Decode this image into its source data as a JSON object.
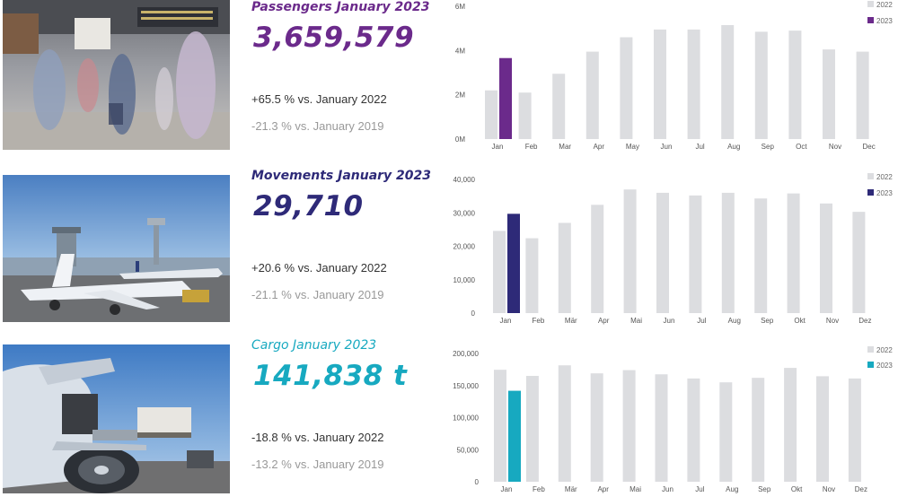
{
  "colors": {
    "bar_2022": "#dcdde0",
    "axis_text": "#555555"
  },
  "sections": [
    {
      "id": "passengers",
      "photo": "airport-terminal-passengers-photo",
      "title": "Passengers January 2023",
      "value": "3,659,579",
      "yoy": "+65.5 % vs. January 2022",
      "vs2019": "-21.3 % vs. January 2019",
      "accent": "#6b2a8b",
      "title_color": "#6b2a8b",
      "chart_data": {
        "type": "bar",
        "categories": [
          "Jan",
          "Feb",
          "Mar",
          "Apr",
          "May",
          "Jun",
          "Jul",
          "Aug",
          "Sep",
          "Oct",
          "Nov",
          "Dec"
        ],
        "series": [
          {
            "name": "2022",
            "values": [
              2.2,
              2.1,
              2.95,
              3.95,
              4.6,
              4.95,
              4.95,
              5.15,
              4.85,
              4.9,
              4.05,
              3.95
            ]
          },
          {
            "name": "2023",
            "values": [
              3.66,
              null,
              null,
              null,
              null,
              null,
              null,
              null,
              null,
              null,
              null,
              null
            ]
          }
        ],
        "ylim": [
          0,
          6
        ],
        "yticks": [
          0,
          2,
          4,
          6
        ],
        "ytick_labels": [
          "0M",
          "2M",
          "4M",
          "6M"
        ],
        "legend": "top-right",
        "grid": false
      }
    },
    {
      "id": "movements",
      "photo": "aircraft-at-gate-photo",
      "title": "Movements January 2023",
      "value": "29,710",
      "yoy": "+20.6 % vs. January 2022",
      "vs2019": "-21.1 % vs. January 2019",
      "accent": "#2e2a78",
      "title_color": "#2e2a78",
      "chart_data": {
        "type": "bar",
        "categories": [
          "Jan",
          "Feb",
          "Mär",
          "Apr",
          "Mai",
          "Jun",
          "Jul",
          "Aug",
          "Sep",
          "Okt",
          "Nov",
          "Dez"
        ],
        "series": [
          {
            "name": "2022",
            "values": [
              24600,
              22400,
              27000,
              32400,
              37000,
              36000,
              35200,
              36000,
              34300,
              35800,
              32800,
              30300
            ]
          },
          {
            "name": "2023",
            "values": [
              29710,
              null,
              null,
              null,
              null,
              null,
              null,
              null,
              null,
              null,
              null,
              null
            ]
          }
        ],
        "ylim": [
          0,
          40000
        ],
        "yticks": [
          0,
          10000,
          20000,
          30000,
          40000
        ],
        "ytick_labels": [
          "0",
          "10,000",
          "20,000",
          "30,000",
          "40,000"
        ],
        "legend": "top-right",
        "grid": false
      }
    },
    {
      "id": "cargo",
      "photo": "cargo-aircraft-loading-photo",
      "title": "Cargo January 2023",
      "value": "141,838 t",
      "yoy": "-18.8 % vs. January 2022",
      "vs2019": "-13.2 % vs. January 2019",
      "accent": "#17a9c0",
      "title_color": "#17a9c0",
      "chart_data": {
        "type": "bar",
        "categories": [
          "Jan",
          "Feb",
          "Mär",
          "Apr",
          "Mai",
          "Jun",
          "Jul",
          "Aug",
          "Sep",
          "Okt",
          "Nov",
          "Dez"
        ],
        "series": [
          {
            "name": "2022",
            "values": [
              174600,
              165000,
              181500,
              169000,
              174000,
              167500,
              161000,
              155000,
              162000,
              177500,
              164500,
              161000
            ]
          },
          {
            "name": "2023",
            "values": [
              141838,
              null,
              null,
              null,
              null,
              null,
              null,
              null,
              null,
              null,
              null,
              null
            ]
          }
        ],
        "ylim": [
          0,
          200000
        ],
        "yticks": [
          0,
          50000,
          100000,
          150000,
          200000
        ],
        "ytick_labels": [
          "0",
          "50,000",
          "100,000",
          "150,000",
          "200,000"
        ],
        "legend": "top-right",
        "grid": false
      }
    }
  ]
}
